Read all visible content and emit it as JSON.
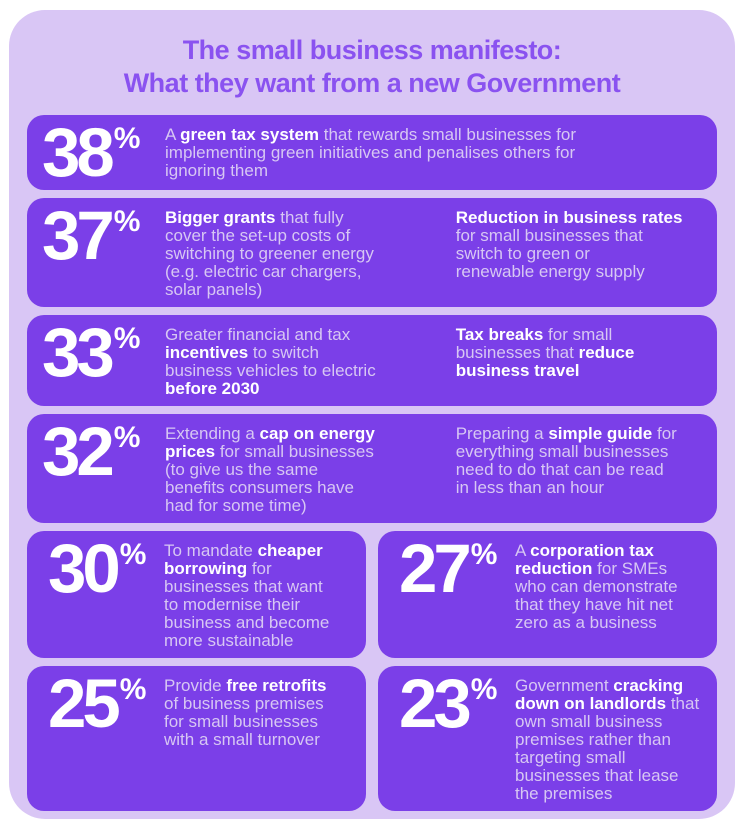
{
  "colors": {
    "page_bg": "#ffffff",
    "panel_bg": "#d9c6f5",
    "card_bg": "#7b3fe8",
    "title_text": "#8a52f0",
    "body_text": "#d7c7f3",
    "bold_text": "#ffffff",
    "percent_text": "#ffffff"
  },
  "header": {
    "title_line1": "The small business manifesto:",
    "title_line2": "What they want from a new Government"
  },
  "rows": [
    {
      "cards": [
        {
          "percent": "38",
          "symbol": "%",
          "size": "full",
          "columns": [
            [
              {
                "t": "A ",
                "b": false
              },
              {
                "t": "green tax system",
                "b": true
              },
              {
                "t": " that rewards small businesses for\nimplementing green initiatives and penalises others for\nignoring them",
                "b": false
              }
            ]
          ]
        }
      ]
    },
    {
      "cards": [
        {
          "percent": "37",
          "symbol": "%",
          "size": "full",
          "columns": [
            [
              {
                "t": "Bigger grants",
                "b": true
              },
              {
                "t": " that fully\ncover the set-up costs of\nswitching to greener energy\n(e.g. electric car chargers,\nsolar panels)",
                "b": false
              }
            ],
            [
              {
                "t": "Reduction in business rates",
                "b": true
              },
              {
                "t": "\nfor small businesses that\nswitch to green or\nrenewable energy supply",
                "b": false
              }
            ]
          ]
        }
      ]
    },
    {
      "cards": [
        {
          "percent": "33",
          "symbol": "%",
          "size": "full",
          "columns": [
            [
              {
                "t": "Greater financial and tax\n",
                "b": false
              },
              {
                "t": "incentives",
                "b": true
              },
              {
                "t": " to switch\nbusiness vehicles to electric\n",
                "b": false
              },
              {
                "t": "before 2030",
                "b": true
              }
            ],
            [
              {
                "t": "Tax breaks",
                "b": true
              },
              {
                "t": " for small\nbusinesses that ",
                "b": false
              },
              {
                "t": "reduce\nbusiness travel",
                "b": true
              }
            ]
          ]
        }
      ]
    },
    {
      "cards": [
        {
          "percent": "32",
          "symbol": "%",
          "size": "full",
          "columns": [
            [
              {
                "t": "Extending a ",
                "b": false
              },
              {
                "t": "cap on energy\nprices",
                "b": true
              },
              {
                "t": " for small businesses\n(to give us the same\nbenefits consumers have\nhad for some time)",
                "b": false
              }
            ],
            [
              {
                "t": "Preparing a ",
                "b": false
              },
              {
                "t": "simple guide",
                "b": true
              },
              {
                "t": " for\neverything small businesses\nneed to do that can be read\nin less than an hour",
                "b": false
              }
            ]
          ]
        }
      ]
    },
    {
      "cards": [
        {
          "percent": "30",
          "symbol": "%",
          "size": "half",
          "columns": [
            [
              {
                "t": "To mandate ",
                "b": false
              },
              {
                "t": "cheaper\nborrowing",
                "b": true
              },
              {
                "t": " for\nbusinesses that want\nto modernise their\nbusiness and become\nmore sustainable",
                "b": false
              }
            ]
          ]
        },
        {
          "percent": "27",
          "symbol": "%",
          "size": "half",
          "columns": [
            [
              {
                "t": "A ",
                "b": false
              },
              {
                "t": "corporation tax\nreduction",
                "b": true
              },
              {
                "t": " for SMEs\nwho can demonstrate\nthat they have hit net\nzero as a business",
                "b": false
              }
            ]
          ]
        }
      ]
    },
    {
      "cards": [
        {
          "percent": "25",
          "symbol": "%",
          "size": "half",
          "columns": [
            [
              {
                "t": "Provide ",
                "b": false
              },
              {
                "t": "free retrofits",
                "b": true
              },
              {
                "t": "\nof business premises\nfor small businesses\nwith a small turnover",
                "b": false
              }
            ]
          ]
        },
        {
          "percent": "23",
          "symbol": "%",
          "size": "half",
          "columns": [
            [
              {
                "t": "Government ",
                "b": false
              },
              {
                "t": "cracking\ndown on landlords",
                "b": true
              },
              {
                "t": " that\nown small business\npremises rather than\ntargeting small\nbusinesses that lease\nthe premises",
                "b": false
              }
            ]
          ]
        }
      ]
    }
  ],
  "chart_data": {
    "type": "table",
    "title": "The small business manifesto: What they want from a new Government",
    "items": [
      {
        "percent": 38,
        "labels": [
          "A green tax system that rewards small businesses for implementing green initiatives and penalises others for ignoring them"
        ]
      },
      {
        "percent": 37,
        "labels": [
          "Bigger grants that fully cover the set-up costs of switching to greener energy (e.g. electric car chargers, solar panels)",
          "Reduction in business rates for small businesses that switch to green or renewable energy supply"
        ]
      },
      {
        "percent": 33,
        "labels": [
          "Greater financial and tax incentives to switch business vehicles to electric before 2030",
          "Tax breaks for small businesses that reduce business travel"
        ]
      },
      {
        "percent": 32,
        "labels": [
          "Extending a cap on energy prices for small businesses (to give us the same benefits consumers have had for some time)",
          "Preparing a simple guide for everything small businesses need to do that can be read in less than an hour"
        ]
      },
      {
        "percent": 30,
        "labels": [
          "To mandate cheaper borrowing for businesses that want to modernise their business and become more sustainable"
        ]
      },
      {
        "percent": 27,
        "labels": [
          "A corporation tax reduction for SMEs who can demonstrate that they have hit net zero as a business"
        ]
      },
      {
        "percent": 25,
        "labels": [
          "Provide free retrofits of business premises for small businesses with a small turnover"
        ]
      },
      {
        "percent": 23,
        "labels": [
          "Government cracking down on landlords that own small business premises rather than targeting small businesses that lease the premises"
        ]
      }
    ],
    "values": [
      38,
      37,
      33,
      32,
      30,
      27,
      25,
      23
    ],
    "legend": "none",
    "grid": false
  }
}
